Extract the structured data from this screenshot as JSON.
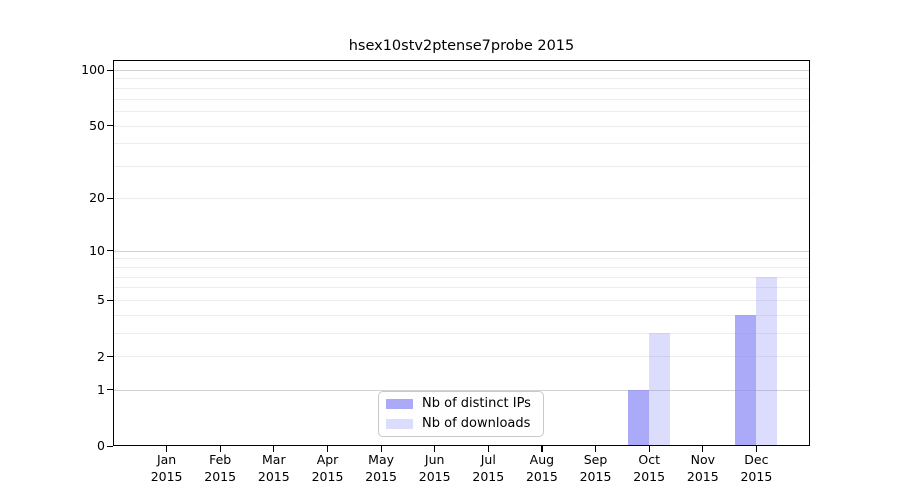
{
  "page": {
    "background": "#ffffff"
  },
  "chart_data": {
    "type": "bar",
    "title": "hsex10stv2ptense7probe 2015",
    "categories": [
      "Jan",
      "Feb",
      "Mar",
      "Apr",
      "May",
      "Jun",
      "Jul",
      "Aug",
      "Sep",
      "Oct",
      "Nov",
      "Dec"
    ],
    "category_year": "2015",
    "series": [
      {
        "name": "Nb of distinct IPs",
        "color": "rgba(140,140,245,0.74)",
        "values": [
          0,
          0,
          0,
          0,
          0,
          0,
          0,
          0,
          0,
          1,
          0,
          4
        ]
      },
      {
        "name": "Nb of downloads",
        "color": "rgba(140,140,245,0.30)",
        "values": [
          0,
          0,
          0,
          0,
          0,
          0,
          0,
          0,
          0,
          3,
          0,
          7
        ]
      }
    ],
    "xlabel": "",
    "ylabel": "",
    "yscale": "symlog (log(1+v))",
    "ylim": [
      0,
      113
    ],
    "ytick_labels": [
      "100",
      "50",
      "20",
      "10",
      "5",
      "2",
      "1",
      "0"
    ],
    "ytick_values": [
      100,
      50,
      20,
      10,
      5,
      2,
      1,
      0
    ],
    "major_gridlines": [
      1,
      10,
      100
    ],
    "minor_gridlines": [
      2,
      3,
      4,
      5,
      6,
      7,
      8,
      9,
      20,
      30,
      40,
      50,
      60,
      70,
      80,
      90
    ],
    "grid": true,
    "legend": {
      "position": "bottom-center",
      "entries": [
        "Nb of distinct IPs",
        "Nb of downloads"
      ]
    },
    "colors": {
      "axis": "#000000",
      "grid_major": "#d2d2d2",
      "grid_minor": "#ececec",
      "text": "#000000",
      "legend_border": "#c9c9c9"
    }
  }
}
